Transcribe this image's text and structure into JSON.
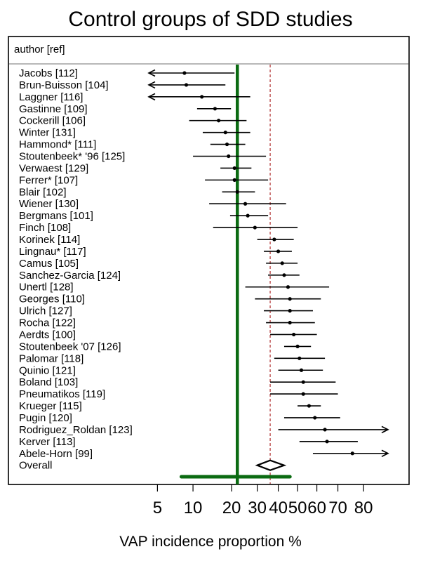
{
  "chart_data": {
    "type": "forest",
    "title": "Control groups of SDD studies",
    "column_header": "author [ref]",
    "xlabel": "VAP incidence proportion %",
    "x_scale": "logit",
    "xlim": [
      4.2,
      87
    ],
    "x_ticks": [
      5,
      10,
      20,
      30,
      40,
      50,
      60,
      70,
      80
    ],
    "reference_lines": {
      "overall_estimate": 22,
      "dashed_line": 36
    },
    "colors": {
      "overall_line": "#0b6b12",
      "dashed_line": "#b03030",
      "marks": "#000000"
    },
    "studies": [
      {
        "label": "Jacobs  [112]",
        "est": 8.5,
        "lo": 4.2,
        "hi": 21,
        "arrow_left": true,
        "arrow_right": false
      },
      {
        "label": "Brun-Buisson  [104]",
        "est": 8.8,
        "lo": 4.2,
        "hi": 18,
        "arrow_left": true,
        "arrow_right": false
      },
      {
        "label": "Laggner  [116]",
        "est": 11.8,
        "lo": 4.2,
        "hi": 27,
        "arrow_left": true,
        "arrow_right": false
      },
      {
        "label": "Gastinne  [109]",
        "est": 15,
        "lo": 10.8,
        "hi": 19.8,
        "arrow_left": false,
        "arrow_right": false
      },
      {
        "label": "Cockerill  [106]",
        "est": 16,
        "lo": 9.3,
        "hi": 25.5,
        "arrow_left": false,
        "arrow_right": false
      },
      {
        "label": "Winter  [131]",
        "est": 18,
        "lo": 12,
        "hi": 27,
        "arrow_left": false,
        "arrow_right": false
      },
      {
        "label": "Hammond*  [111]",
        "est": 18.5,
        "lo": 13.8,
        "hi": 25,
        "arrow_left": false,
        "arrow_right": false
      },
      {
        "label": "Stoutenbeek*  '96  [125]",
        "est": 19,
        "lo": 10,
        "hi": 34,
        "arrow_left": false,
        "arrow_right": false
      },
      {
        "label": "Verwaest  [129]",
        "est": 21,
        "lo": 16.5,
        "hi": 27.5,
        "arrow_left": false,
        "arrow_right": false
      },
      {
        "label": "Ferrer*  [107]",
        "est": 21,
        "lo": 12.5,
        "hi": 35,
        "arrow_left": false,
        "arrow_right": false
      },
      {
        "label": "Blair  [102]",
        "est": 22,
        "lo": 17,
        "hi": 29,
        "arrow_left": false,
        "arrow_right": false
      },
      {
        "label": "Wiener  [130]",
        "est": 25,
        "lo": 13.5,
        "hi": 44,
        "arrow_left": false,
        "arrow_right": false
      },
      {
        "label": "Bergmans  [101]",
        "est": 26,
        "lo": 19.5,
        "hi": 35,
        "arrow_left": false,
        "arrow_right": false
      },
      {
        "label": "Finch  [108]",
        "est": 29,
        "lo": 14.5,
        "hi": 50,
        "arrow_left": false,
        "arrow_right": false
      },
      {
        "label": "Korinek  [114]",
        "est": 38,
        "lo": 30,
        "hi": 48,
        "arrow_left": false,
        "arrow_right": false
      },
      {
        "label": "Lingnau*  [117]",
        "est": 40,
        "lo": 33,
        "hi": 47,
        "arrow_left": false,
        "arrow_right": false
      },
      {
        "label": "Camus  [105]",
        "est": 42,
        "lo": 34,
        "hi": 50,
        "arrow_left": false,
        "arrow_right": false
      },
      {
        "label": "Sanchez-Garcia  [124]",
        "est": 43,
        "lo": 35,
        "hi": 51,
        "arrow_left": false,
        "arrow_right": false
      },
      {
        "label": "Unertl  [128]",
        "est": 45,
        "lo": 25,
        "hi": 66,
        "arrow_left": false,
        "arrow_right": false
      },
      {
        "label": "Georges  [110]",
        "est": 46,
        "lo": 29,
        "hi": 62,
        "arrow_left": false,
        "arrow_right": false
      },
      {
        "label": "Ulrich  [127]",
        "est": 46,
        "lo": 33,
        "hi": 58,
        "arrow_left": false,
        "arrow_right": false
      },
      {
        "label": "Rocha  [122]",
        "est": 46,
        "lo": 34,
        "hi": 59,
        "arrow_left": false,
        "arrow_right": false
      },
      {
        "label": "Aerdts  [100]",
        "est": 48,
        "lo": 36,
        "hi": 60,
        "arrow_left": false,
        "arrow_right": false
      },
      {
        "label": "Stoutenbeek  '07  [126]",
        "est": 50,
        "lo": 43,
        "hi": 57,
        "arrow_left": false,
        "arrow_right": false
      },
      {
        "label": "Palomar  [118]",
        "est": 51,
        "lo": 38,
        "hi": 64,
        "arrow_left": false,
        "arrow_right": false
      },
      {
        "label": "Quinio  [121]",
        "est": 52,
        "lo": 40,
        "hi": 63,
        "arrow_left": false,
        "arrow_right": false
      },
      {
        "label": "Boland  [103]",
        "est": 53,
        "lo": 36,
        "hi": 69,
        "arrow_left": false,
        "arrow_right": false
      },
      {
        "label": "Pneumatikos  [119]",
        "est": 53,
        "lo": 36,
        "hi": 70,
        "arrow_left": false,
        "arrow_right": false
      },
      {
        "label": "Krueger  [115]",
        "est": 56,
        "lo": 50,
        "hi": 62,
        "arrow_left": false,
        "arrow_right": false
      },
      {
        "label": "Pugin  [120]",
        "est": 59,
        "lo": 43,
        "hi": 71,
        "arrow_left": false,
        "arrow_right": false
      },
      {
        "label": "Rodriguez_Roldan  [123]",
        "est": 64,
        "lo": 40,
        "hi": 87,
        "arrow_left": false,
        "arrow_right": true
      },
      {
        "label": "Kerver  [113]",
        "est": 65,
        "lo": 51,
        "hi": 78,
        "arrow_left": false,
        "arrow_right": false
      },
      {
        "label": "Abele-Horn  [99]",
        "est": 76,
        "lo": 58,
        "hi": 87,
        "arrow_left": false,
        "arrow_right": true
      }
    ],
    "overall": {
      "label": "Overall",
      "est": 36,
      "lo": 30,
      "hi": 43
    },
    "overall_interval": {
      "lo": 8,
      "hi": 46
    }
  }
}
